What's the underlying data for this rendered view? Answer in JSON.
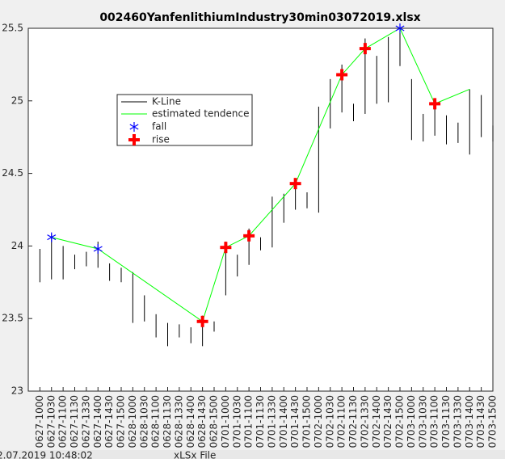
{
  "chart_data": {
    "type": "kline",
    "title": "002460YanfenlithiumIndustry30min03072019.xlsx",
    "categories": [
      "0627-1000",
      "0627-1030",
      "0627-1100",
      "0627-1130",
      "0627-1330",
      "0627-1400",
      "0627-1430",
      "0627-1500",
      "0628-1000",
      "0628-1030",
      "0628-1100",
      "0628-1130",
      "0628-1330",
      "0628-1400",
      "0628-1430",
      "0628-1500",
      "0701-1000",
      "0701-1030",
      "0701-1100",
      "0701-1130",
      "0701-1330",
      "0701-1400",
      "0701-1430",
      "0701-1500",
      "0702-1000",
      "0702-1030",
      "0702-1100",
      "0702-1130",
      "0702-1330",
      "0702-1400",
      "0702-1430",
      "0702-1500",
      "0703-1000",
      "0703-1030",
      "0703-1100",
      "0703-1130",
      "0703-1330",
      "0703-1400",
      "0703-1430",
      "0703-1500"
    ],
    "xlim": [
      0,
      40
    ],
    "ylim": [
      23,
      25.5
    ],
    "yticks": [
      23,
      23.5,
      24,
      24.5,
      25,
      25.5
    ],
    "kline": {
      "name": "K-Line",
      "color": "#000000",
      "high": [
        23.98,
        24.08,
        24.0,
        23.94,
        23.96,
        24.03,
        23.88,
        23.85,
        23.82,
        23.66,
        23.53,
        23.47,
        23.46,
        23.44,
        23.52,
        23.48,
        24.03,
        23.94,
        24.12,
        24.06,
        24.34,
        24.36,
        24.46,
        24.37,
        24.96,
        25.15,
        25.25,
        24.98,
        25.43,
        25.31,
        25.44,
        25.49,
        25.15,
        24.91,
        25.0,
        24.9,
        24.85,
        25.08,
        25.04,
        24.83
      ],
      "low": [
        23.75,
        23.77,
        23.77,
        23.84,
        23.86,
        23.85,
        23.76,
        23.75,
        23.47,
        23.48,
        23.37,
        23.31,
        23.37,
        23.33,
        23.31,
        23.41,
        23.66,
        23.79,
        23.87,
        23.97,
        23.99,
        24.16,
        24.25,
        24.26,
        24.23,
        24.81,
        24.92,
        24.86,
        24.91,
        24.98,
        24.99,
        25.24,
        24.73,
        24.72,
        24.76,
        24.7,
        24.71,
        24.63,
        24.75,
        24.72
      ]
    },
    "series": [
      {
        "name": "estimated tendence",
        "color": "#00ff00",
        "x": [
          2,
          6,
          15,
          17,
          19,
          23,
          27,
          29,
          32,
          35,
          38
        ],
        "values": [
          24.06,
          23.98,
          23.48,
          23.99,
          24.07,
          24.43,
          25.18,
          25.36,
          25.5,
          24.98,
          25.08
        ]
      },
      {
        "name": "fall",
        "color": "#0000ff",
        "marker": "asterisk",
        "x": [
          2,
          6,
          32
        ],
        "values": [
          24.06,
          23.98,
          25.5
        ]
      },
      {
        "name": "rise",
        "color": "#ff0000",
        "marker": "plus",
        "x": [
          15,
          17,
          19,
          23,
          27,
          29,
          35
        ],
        "values": [
          23.48,
          23.99,
          24.07,
          24.43,
          25.18,
          25.36,
          24.98
        ]
      }
    ]
  },
  "status": [
    "2.07.2019 10:48:02",
    "xLSx File"
  ]
}
